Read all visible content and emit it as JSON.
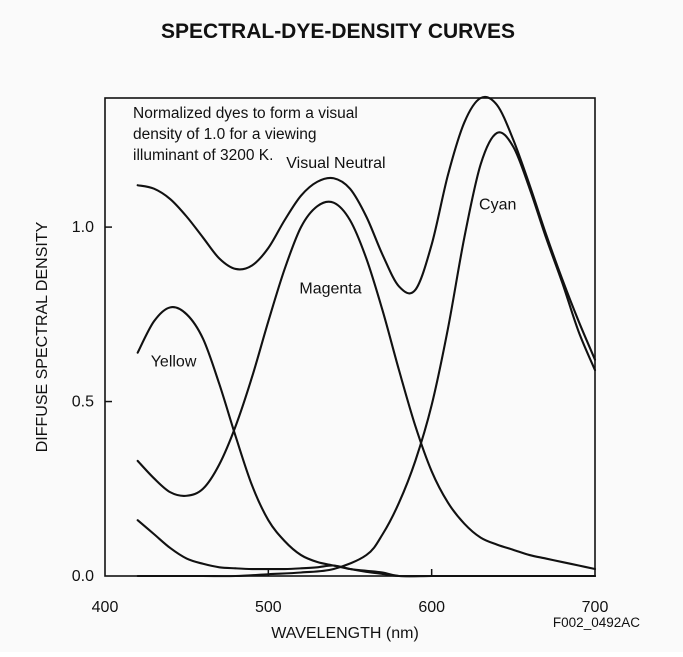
{
  "chart_data": {
    "type": "line",
    "title": "SPECTRAL-DYE-DENSITY CURVES",
    "annotation": [
      "Normalized dyes to form a visual",
      "density of 1.0 for a viewing",
      "illuminant of 3200 K."
    ],
    "xlabel": "WAVELENGTH (nm)",
    "ylabel": "DIFFUSE SPECTRAL DENSITY",
    "figure_id": "F002_0492AC",
    "xlim": [
      400,
      700
    ],
    "ylim": [
      0,
      1.37
    ],
    "x_ticks": [
      {
        "value": 400,
        "label": "400"
      },
      {
        "value": 500,
        "label": "500"
      },
      {
        "value": 600,
        "label": "600"
      },
      {
        "value": 700,
        "label": "700"
      }
    ],
    "y_ticks": [
      {
        "value": 0.0,
        "label": "0.0"
      },
      {
        "value": 0.5,
        "label": "0.5"
      },
      {
        "value": 1.0,
        "label": "1.0"
      }
    ],
    "grid": false,
    "legend": "none",
    "series": [
      {
        "name": "Visual Neutral",
        "label_at": {
          "x": 511,
          "y": 1.17
        },
        "x": [
          420,
          430,
          440,
          450,
          460,
          470,
          480,
          490,
          500,
          510,
          520,
          530,
          540,
          550,
          560,
          570,
          580,
          590,
          600,
          610,
          620,
          630,
          640,
          650,
          660,
          670,
          680,
          690,
          700
        ],
        "y": [
          1.12,
          1.11,
          1.08,
          1.03,
          0.97,
          0.91,
          0.88,
          0.89,
          0.94,
          1.02,
          1.09,
          1.13,
          1.14,
          1.11,
          1.03,
          0.92,
          0.83,
          0.82,
          0.95,
          1.15,
          1.3,
          1.37,
          1.35,
          1.25,
          1.12,
          0.98,
          0.85,
          0.73,
          0.62
        ]
      },
      {
        "name": "Cyan",
        "label_at": {
          "x": 629,
          "y": 1.05
        },
        "x": [
          420,
          440,
          460,
          480,
          500,
          520,
          540,
          560,
          570,
          580,
          590,
          600,
          610,
          620,
          630,
          640,
          650,
          660,
          670,
          680,
          690,
          700
        ],
        "y": [
          0.0,
          0.0,
          0.0,
          0.0,
          0.005,
          0.01,
          0.02,
          0.06,
          0.12,
          0.21,
          0.33,
          0.49,
          0.71,
          0.97,
          1.18,
          1.27,
          1.23,
          1.11,
          0.97,
          0.84,
          0.7,
          0.59
        ]
      },
      {
        "name": "Magenta",
        "label_at": {
          "x": 519,
          "y": 0.81
        },
        "x": [
          420,
          430,
          440,
          450,
          460,
          470,
          480,
          490,
          500,
          510,
          520,
          530,
          540,
          550,
          560,
          570,
          580,
          590,
          600,
          610,
          620,
          630,
          640,
          650,
          660,
          670,
          680,
          690,
          700
        ],
        "y": [
          0.33,
          0.28,
          0.24,
          0.23,
          0.25,
          0.32,
          0.43,
          0.57,
          0.73,
          0.88,
          1.0,
          1.06,
          1.07,
          1.02,
          0.91,
          0.76,
          0.59,
          0.43,
          0.3,
          0.21,
          0.15,
          0.11,
          0.09,
          0.075,
          0.06,
          0.05,
          0.04,
          0.03,
          0.02
        ]
      },
      {
        "name": "Yellow",
        "label_at": {
          "x": 428,
          "y": 0.6
        },
        "x": [
          420,
          430,
          440,
          450,
          460,
          470,
          480,
          490,
          500,
          510,
          520,
          530,
          540,
          550,
          560,
          570,
          580,
          600,
          620,
          640,
          660,
          680,
          700
        ],
        "y": [
          0.64,
          0.73,
          0.77,
          0.75,
          0.68,
          0.55,
          0.4,
          0.26,
          0.16,
          0.1,
          0.06,
          0.04,
          0.03,
          0.02,
          0.015,
          0.01,
          0.0,
          0.0,
          0.0,
          0.0,
          0.0,
          0.0,
          0.0
        ]
      },
      {
        "name": "",
        "x": [
          420,
          430,
          440,
          450,
          460,
          470,
          480,
          490,
          500,
          510,
          520,
          530,
          540,
          550,
          560,
          570,
          580,
          600,
          620,
          640,
          660,
          680,
          700
        ],
        "y": [
          0.16,
          0.12,
          0.08,
          0.05,
          0.035,
          0.025,
          0.022,
          0.02,
          0.02,
          0.02,
          0.022,
          0.025,
          0.03,
          0.02,
          0.012,
          0.006,
          0.0,
          0.0,
          0.0,
          0.0,
          0.0,
          0.0,
          0.0
        ]
      }
    ]
  }
}
